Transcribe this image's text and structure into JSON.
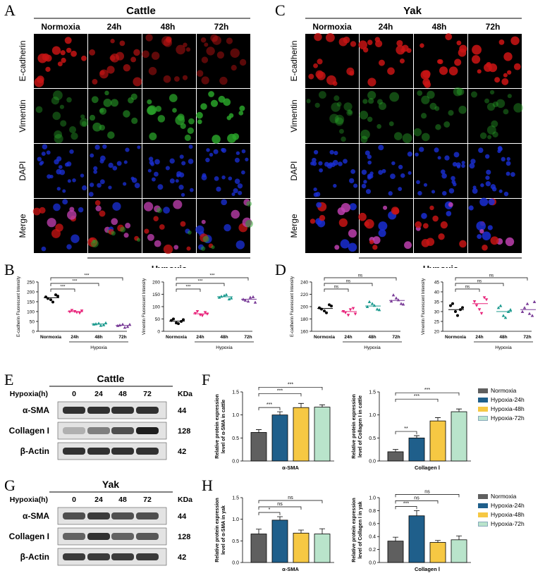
{
  "figure": {
    "panel_labels": [
      "A",
      "B",
      "C",
      "D",
      "E",
      "F",
      "G",
      "H"
    ],
    "colors": {
      "normoxia": "#5f5f5f",
      "hypoxia_24h": "#1f5f8b",
      "hypoxia_48h": "#f6c843",
      "hypoxia_72h": "#b9e4cb",
      "marker_normoxia": "#000000",
      "marker_24h": "#e8237a",
      "marker_48h": "#1b9a8e",
      "marker_72h": "#7a3d98",
      "ecad_stain": "#c81414",
      "vim_stain": "#2aa52a",
      "dapi_stain": "#1a2fd6"
    }
  },
  "panel_a": {
    "title": "Cattle",
    "columns": [
      "Normoxia",
      "24h",
      "48h",
      "72h"
    ],
    "rows": [
      "E-cadherin",
      "Vimentin",
      "DAPI",
      "Merge"
    ],
    "group_label": "Hypoxia"
  },
  "panel_c": {
    "title": "Yak",
    "columns": [
      "Normoxia",
      "24h",
      "48h",
      "72h"
    ],
    "rows": [
      "E-cadherin",
      "Vimentin",
      "DAPI",
      "Merge"
    ],
    "group_label": "Hypoxia"
  },
  "western_e": {
    "title": "Cattle",
    "header_label": "Hypoxia(h)",
    "lanes": [
      "0",
      "24",
      "48",
      "72"
    ],
    "unit": "KDa",
    "proteins": [
      {
        "name": "α-SMA",
        "kda": "44",
        "intensity": [
          0.85,
          0.85,
          0.85,
          0.85
        ]
      },
      {
        "name": "Collagen I",
        "kda": "128",
        "intensity": [
          0.2,
          0.45,
          0.7,
          0.95
        ]
      },
      {
        "name": "β-Actin",
        "kda": "42",
        "intensity": [
          0.85,
          0.85,
          0.85,
          0.85
        ]
      }
    ],
    "group_label": ""
  },
  "western_g": {
    "title": "Yak",
    "header_label": "Hypoxia(h)",
    "lanes": [
      "0",
      "24",
      "48",
      "72"
    ],
    "unit": "KDa",
    "proteins": [
      {
        "name": "α-SMA",
        "kda": "44",
        "intensity": [
          0.7,
          0.8,
          0.7,
          0.7
        ]
      },
      {
        "name": "Collagen I",
        "kda": "128",
        "intensity": [
          0.6,
          0.85,
          0.6,
          0.65
        ]
      },
      {
        "name": "β-Actin",
        "kda": "42",
        "intensity": [
          0.8,
          0.8,
          0.8,
          0.8
        ]
      }
    ]
  },
  "legend": {
    "entries": [
      "Normoxia",
      "Hypoxia-24h",
      "Hypoxia-48h",
      "Hypoxia-72h"
    ]
  },
  "chart_data": [
    {
      "id": "B1",
      "type": "scatter",
      "ylabel": "E-cadherin Fluorescent Intensity",
      "categories": [
        "Normoxia",
        "24h",
        "48h",
        "72h"
      ],
      "group_label": "Hypoxia",
      "ylim": [
        0,
        250
      ],
      "yticks": [
        0,
        50,
        100,
        150,
        200,
        250
      ],
      "points": [
        [
          174,
          160,
          185,
          166,
          148,
          178
        ],
        [
          98,
          100,
          92,
          106,
          95,
          103
        ],
        [
          36,
          41,
          33,
          38,
          30,
          43
        ],
        [
          29,
          36,
          24,
          32,
          20,
          35
        ]
      ],
      "means": [
        170,
        100,
        37,
        30
      ],
      "significance": [
        {
          "from": 0,
          "to": 1,
          "label": "***"
        },
        {
          "from": 0,
          "to": 2,
          "label": "***"
        },
        {
          "from": 0,
          "to": 3,
          "label": "***"
        }
      ]
    },
    {
      "id": "B2",
      "type": "scatter",
      "ylabel": "Vimentin Fluorescent Intensity",
      "categories": [
        "Normoxia",
        "24h",
        "48h",
        "72h"
      ],
      "group_label": "Hypoxia",
      "ylim": [
        0,
        200
      ],
      "yticks": [
        0,
        50,
        100,
        150,
        200
      ],
      "points": [
        [
          44,
          34,
          40,
          50,
          31,
          47
        ],
        [
          72,
          66,
          76,
          80,
          63,
          70
        ],
        [
          138,
          145,
          131,
          142,
          149,
          135
        ],
        [
          130,
          122,
          140,
          126,
          138,
          118
        ]
      ],
      "means": [
        41,
        71,
        140,
        130
      ],
      "significance": [
        {
          "from": 0,
          "to": 1,
          "label": "***"
        },
        {
          "from": 0,
          "to": 2,
          "label": "***"
        },
        {
          "from": 0,
          "to": 3,
          "label": "***"
        }
      ]
    },
    {
      "id": "D1",
      "type": "scatter",
      "ylabel": "E-cadherin Fluorescent Intensity",
      "categories": [
        "Normoxia",
        "24h",
        "48h",
        "72h"
      ],
      "group_label": "Hypoxia",
      "ylim": [
        160,
        240
      ],
      "yticks": [
        160,
        180,
        200,
        220,
        240
      ],
      "points": [
        [
          198,
          193,
          203,
          196,
          190,
          201
        ],
        [
          192,
          186,
          197,
          190,
          195,
          188
        ],
        [
          200,
          205,
          196,
          208,
          202,
          195
        ],
        [
          209,
          214,
          205,
          219,
          211,
          204
        ]
      ],
      "means": [
        197,
        192,
        201,
        210
      ],
      "significance": [
        {
          "from": 0,
          "to": 1,
          "label": "ns"
        },
        {
          "from": 0,
          "to": 2,
          "label": "ns"
        },
        {
          "from": 0,
          "to": 3,
          "label": "ns"
        }
      ]
    },
    {
      "id": "D2",
      "type": "scatter",
      "ylabel": "Vimentin Fluorescent Intensity",
      "categories": [
        "Normoxia",
        "24h",
        "48h",
        "72h"
      ],
      "group_label": "Hypoxia",
      "ylim": [
        20,
        45
      ],
      "yticks": [
        20,
        25,
        30,
        35,
        40,
        45
      ],
      "points": [
        [
          33,
          30,
          31,
          34,
          28,
          32
        ],
        [
          35,
          31,
          37,
          33,
          29,
          36
        ],
        [
          32,
          28,
          30,
          33,
          27,
          31
        ],
        [
          30,
          34,
          28,
          32,
          29,
          35
        ]
      ],
      "means": [
        31,
        34,
        30,
        31
      ],
      "significance": [
        {
          "from": 0,
          "to": 1,
          "label": "ns"
        },
        {
          "from": 0,
          "to": 2,
          "label": "ns"
        },
        {
          "from": 0,
          "to": 3,
          "label": "ns"
        }
      ]
    },
    {
      "id": "F1",
      "type": "bar",
      "ylabel": "Relative protein expression level of α-SMA in cattle",
      "xlabel": "α-SMA",
      "categories": [
        "Normoxia",
        "Hypoxia-24h",
        "Hypoxia-48h",
        "Hypoxia-72h"
      ],
      "ylim": [
        0,
        1.5
      ],
      "yticks": [
        0.0,
        0.5,
        1.0,
        1.5
      ],
      "values": [
        0.62,
        1.0,
        1.16,
        1.17
      ],
      "errors": [
        0.06,
        0.07,
        0.09,
        0.05
      ],
      "significance": [
        {
          "from": 0,
          "to": 1,
          "label": "***"
        },
        {
          "from": 0,
          "to": 2,
          "label": "***"
        },
        {
          "from": 0,
          "to": 3,
          "label": "***"
        }
      ]
    },
    {
      "id": "F2",
      "type": "bar",
      "ylabel": "Relative protein expression level of Collagen I in cattle",
      "xlabel": "Collagen Ⅰ",
      "categories": [
        "Normoxia",
        "Hypoxia-24h",
        "Hypoxia-48h",
        "Hypoxia-72h"
      ],
      "ylim": [
        0,
        1.5
      ],
      "yticks": [
        0.0,
        0.5,
        1.0,
        1.5
      ],
      "values": [
        0.2,
        0.5,
        0.87,
        1.07
      ],
      "errors": [
        0.05,
        0.05,
        0.07,
        0.06
      ],
      "significance": [
        {
          "from": 0,
          "to": 1,
          "label": "**"
        },
        {
          "from": 0,
          "to": 2,
          "label": "***"
        },
        {
          "from": 0,
          "to": 3,
          "label": "***"
        }
      ]
    },
    {
      "id": "H1",
      "type": "bar",
      "ylabel": "Relative protein expression level of α-SMA in yak",
      "xlabel": "α-SMA",
      "categories": [
        "Normoxia",
        "Hypoxia-24h",
        "Hypoxia-48h",
        "Hypoxia-72h"
      ],
      "ylim": [
        0,
        1.5
      ],
      "yticks": [
        0.0,
        0.5,
        1.0,
        1.5
      ],
      "values": [
        0.66,
        0.98,
        0.68,
        0.66
      ],
      "errors": [
        0.11,
        0.08,
        0.07,
        0.12
      ],
      "significance": [
        {
          "from": 0,
          "to": 1,
          "label": "*"
        },
        {
          "from": 0,
          "to": 2,
          "label": "ns"
        },
        {
          "from": 0,
          "to": 3,
          "label": "ns"
        }
      ]
    },
    {
      "id": "H2",
      "type": "bar",
      "ylabel": "Relative protein expression level of Collagen I in yak",
      "xlabel": "Collagen Ⅰ",
      "categories": [
        "Normoxia",
        "Hypoxia-24h",
        "Hypoxia-48h",
        "Hypoxia-72h"
      ],
      "ylim": [
        0,
        1.0
      ],
      "yticks": [
        0.0,
        0.2,
        0.4,
        0.6,
        0.8,
        1.0
      ],
      "values": [
        0.33,
        0.72,
        0.31,
        0.35
      ],
      "errors": [
        0.06,
        0.08,
        0.03,
        0.06
      ],
      "significance": [
        {
          "from": 0,
          "to": 1,
          "label": "***"
        },
        {
          "from": 0,
          "to": 2,
          "label": "ns"
        },
        {
          "from": 0,
          "to": 3,
          "label": "ns"
        }
      ]
    }
  ]
}
